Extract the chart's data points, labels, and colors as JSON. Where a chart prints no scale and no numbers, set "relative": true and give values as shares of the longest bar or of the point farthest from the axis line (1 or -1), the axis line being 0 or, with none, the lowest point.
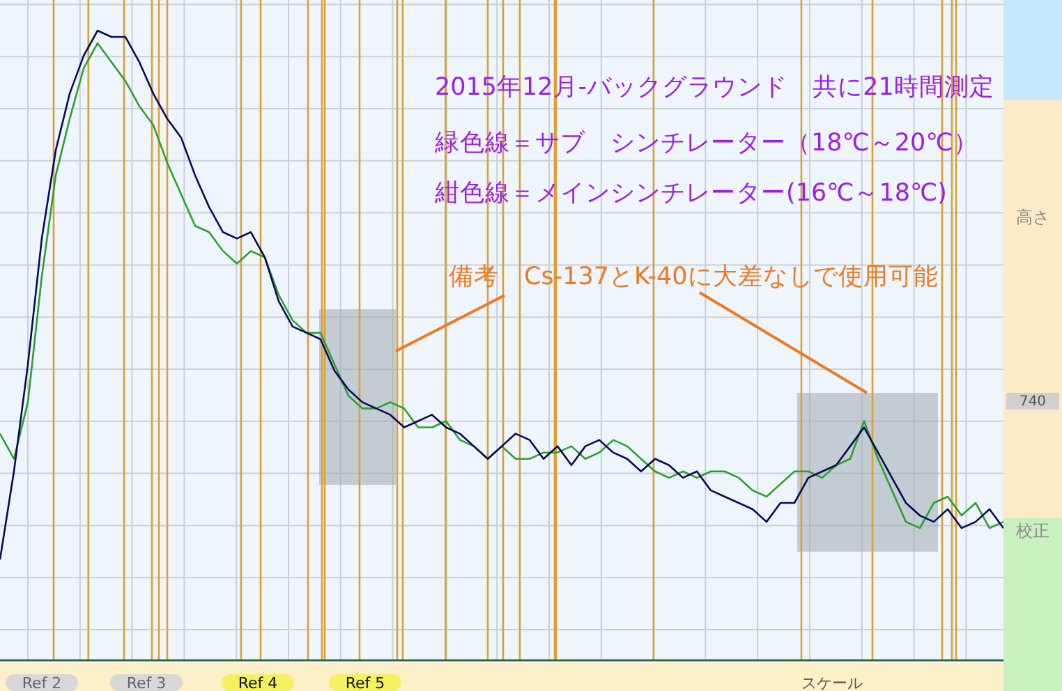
{
  "chart_data": {
    "type": "line",
    "relative": true,
    "title": "2015年12月-バックグラウンド　共に21時間測定",
    "annotations": [
      "緑色線＝サブ　シンチレーター（18℃～20℃）",
      "紺色線＝メインシンチレーター(16℃～18℃)",
      "備考　Cs-137とK-40に大差なしで使用可能",
      "高さ",
      "740",
      "校正",
      "スケール",
      "Ref 2",
      "Ref 3",
      "Ref 4",
      "Ref 5"
    ],
    "categories": [
      null,
      null,
      null,
      null,
      null,
      null,
      null,
      null,
      null,
      null,
      null,
      null,
      null,
      null,
      null,
      null,
      null,
      null,
      null,
      null,
      null,
      null,
      null,
      null,
      null,
      null,
      null,
      null,
      null,
      null,
      null,
      null,
      null,
      null,
      null,
      null,
      null,
      null,
      null,
      null,
      null,
      null,
      null,
      null,
      null,
      null,
      null,
      null,
      null,
      null,
      null,
      null,
      null,
      null,
      null,
      null,
      null,
      null,
      null,
      null,
      null,
      null,
      null,
      null,
      null,
      null,
      null,
      null,
      null,
      null,
      null,
      null,
      null
    ],
    "series": [
      {
        "color": "#2ca02c",
        "values": [
          0.36,
          0.32,
          0.41,
          0.61,
          0.77,
          0.86,
          0.94,
          0.98,
          0.95,
          0.92,
          0.88,
          0.85,
          0.79,
          0.74,
          0.69,
          0.68,
          0.65,
          0.63,
          0.65,
          0.64,
          0.58,
          0.54,
          0.52,
          0.52,
          0.47,
          0.42,
          0.4,
          0.4,
          0.41,
          0.4,
          0.37,
          0.37,
          0.38,
          0.35,
          0.34,
          0.32,
          0.34,
          0.32,
          0.32,
          0.33,
          0.33,
          0.34,
          0.32,
          0.33,
          0.35,
          0.34,
          0.32,
          0.3,
          0.29,
          0.3,
          0.29,
          0.3,
          0.3,
          0.29,
          0.27,
          0.26,
          0.28,
          0.3,
          0.3,
          0.29,
          0.31,
          0.32,
          0.38,
          0.32,
          0.27,
          0.22,
          0.21,
          0.25,
          0.26,
          0.23,
          0.25,
          0.21,
          0.22
        ]
      },
      {
        "color": "#0a0a5a",
        "values": [
          0.16,
          0.3,
          0.47,
          0.67,
          0.81,
          0.9,
          0.96,
          1.0,
          0.99,
          0.99,
          0.95,
          0.9,
          0.86,
          0.83,
          0.77,
          0.72,
          0.68,
          0.67,
          0.68,
          0.64,
          0.57,
          0.53,
          0.52,
          0.51,
          0.46,
          0.43,
          0.41,
          0.4,
          0.39,
          0.37,
          0.38,
          0.39,
          0.37,
          0.36,
          0.34,
          0.32,
          0.34,
          0.36,
          0.35,
          0.32,
          0.34,
          0.31,
          0.34,
          0.35,
          0.33,
          0.32,
          0.3,
          0.32,
          0.31,
          0.29,
          0.3,
          0.27,
          0.26,
          0.25,
          0.24,
          0.22,
          0.25,
          0.25,
          0.29,
          0.3,
          0.31,
          0.34,
          0.37,
          0.33,
          0.29,
          0.25,
          0.23,
          0.22,
          0.24,
          0.21,
          0.22,
          0.24,
          0.21
        ]
      }
    ],
    "grid": true,
    "marker": "none",
    "line_style": "solid"
  }
}
